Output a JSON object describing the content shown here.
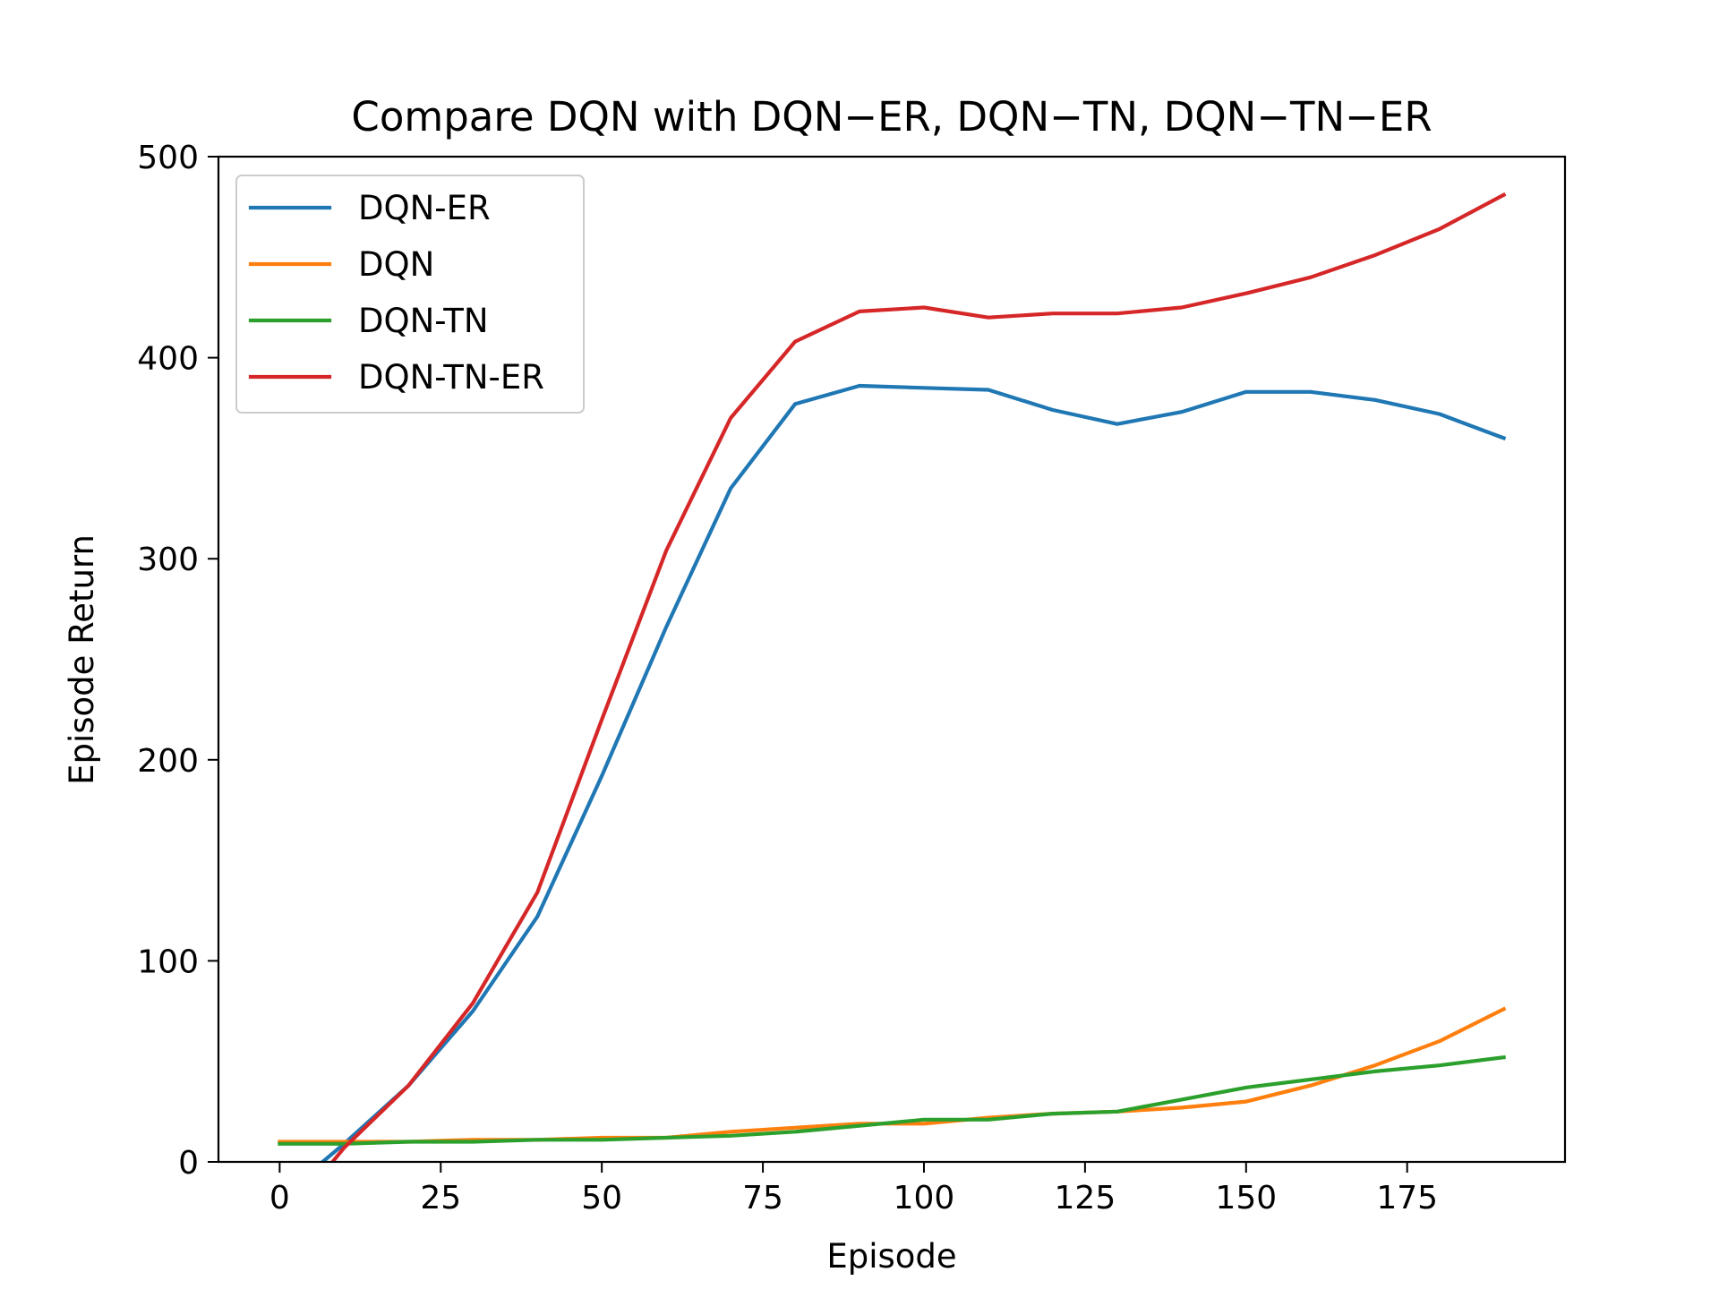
{
  "chart_data": {
    "type": "line",
    "title": "Compare DQN with DQN−ER, DQN−TN, DQN−TN−ER",
    "xlabel": "Episode",
    "ylabel": "Episode Return",
    "xlim": [
      -9.5,
      199.5
    ],
    "ylim": [
      0,
      500
    ],
    "xticks": [
      0,
      25,
      50,
      75,
      100,
      125,
      150,
      175
    ],
    "yticks": [
      0,
      100,
      200,
      300,
      400,
      500
    ],
    "grid": false,
    "legend_position": "top-left",
    "x": [
      0,
      10,
      20,
      30,
      40,
      50,
      60,
      70,
      80,
      90,
      100,
      110,
      120,
      130,
      140,
      150,
      160,
      170,
      180,
      190
    ],
    "series": [
      {
        "name": "DQN-ER",
        "color": "#1f77b4",
        "values": [
          -18,
          9,
          38,
          75,
          122,
          192,
          266,
          335,
          377,
          386,
          385,
          384,
          374,
          367,
          373,
          383,
          383,
          379,
          372,
          360
        ]
      },
      {
        "name": "DQN",
        "color": "#ff7f0e",
        "values": [
          10,
          10,
          10,
          11,
          11,
          12,
          12,
          15,
          17,
          19,
          19,
          22,
          24,
          25,
          27,
          30,
          38,
          48,
          60,
          76
        ]
      },
      {
        "name": "DQN-TN",
        "color": "#2ca02c",
        "values": [
          9,
          9,
          10,
          10,
          11,
          11,
          12,
          13,
          15,
          18,
          21,
          21,
          24,
          25,
          31,
          37,
          41,
          45,
          48,
          52
        ]
      },
      {
        "name": "DQN-TN-ER",
        "color": "#d62728",
        "values": [
          -32,
          7,
          38,
          79,
          134,
          220,
          304,
          370,
          408,
          423,
          425,
          420,
          422,
          422,
          425,
          432,
          440,
          451,
          464,
          481
        ]
      }
    ]
  }
}
